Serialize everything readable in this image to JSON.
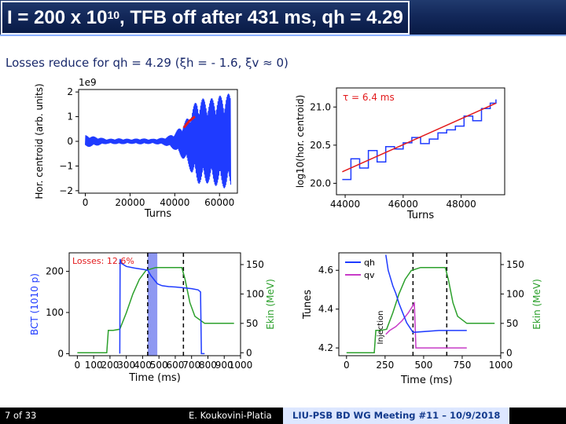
{
  "slide": {
    "title_prefix": "I = 200 x 10",
    "title_exp": "10",
    "title_suffix": ", TFB off after 431 ms, qh = 4.29",
    "subtitle": "Losses reduce for qh = 4.29 (ξh = - 1.6, ξv ≈ 0)",
    "footer": {
      "page": "7 of 33",
      "author": "E. Koukovini-Platia",
      "meeting": "LIU-PSB BD WG Meeting #11 – 10/9/2018"
    },
    "extra_xlabel": "Time (ms)"
  },
  "colors": {
    "blue": "#1f3bff",
    "red": "#e31a1c",
    "green": "#2ca02c",
    "magenta": "#c83cc8",
    "navy": "#10286a"
  },
  "chart_data": [
    {
      "id": "centroid_vs_turns",
      "type": "line",
      "xlabel": "Turns",
      "ylabel": "Hor. centroid (arb. units)",
      "offset_label": "1e9",
      "xlim": [
        -3000,
        68000
      ],
      "ylim": [
        -2.1,
        2.1
      ],
      "xticks": [
        0,
        20000,
        40000,
        60000
      ],
      "yticks": [
        -2,
        -1,
        0,
        1,
        2
      ],
      "envelope": {
        "x": [
          0,
          5000,
          10000,
          15000,
          20000,
          25000,
          30000,
          35000,
          38000,
          40000,
          42000,
          44000,
          46000,
          48000,
          50000,
          52000,
          55000,
          58000,
          62000,
          65000
        ],
        "amp": [
          0.25,
          0.18,
          0.1,
          0.12,
          0.1,
          0.12,
          0.1,
          0.15,
          0.25,
          0.35,
          0.55,
          0.75,
          1.0,
          1.4,
          1.7,
          1.75,
          1.7,
          1.8,
          1.9,
          1.95
        ]
      },
      "fit_highlight": {
        "x": [
          44000,
          49000
        ],
        "y": [
          0.55,
          1.0
        ]
      }
    },
    {
      "id": "log_centroid_fit",
      "type": "line",
      "xlabel": "Turns",
      "ylabel": "log10(hor. centroid)",
      "annotation": "τ = 6.4 ms",
      "xlim": [
        43700,
        49500
      ],
      "ylim": [
        19.85,
        21.25
      ],
      "xticks": [
        44000,
        46000,
        48000
      ],
      "yticks": [
        20.0,
        20.5,
        21.0
      ],
      "x": [
        43900,
        44200,
        44500,
        44800,
        45100,
        45400,
        45700,
        46000,
        46300,
        46600,
        46900,
        47200,
        47500,
        47800,
        48100,
        48400,
        48700,
        49000,
        49200
      ],
      "y": [
        20.05,
        20.32,
        20.2,
        20.43,
        20.28,
        20.48,
        20.45,
        20.53,
        20.6,
        20.52,
        20.58,
        20.66,
        20.7,
        20.75,
        20.88,
        20.82,
        20.98,
        21.05,
        21.1
      ],
      "fit": {
        "x": [
          43900,
          49200
        ],
        "y": [
          20.15,
          21.05
        ]
      }
    },
    {
      "id": "bct_ekin",
      "type": "line",
      "xlabel": "Time (ms)",
      "ylabel": "BCT (1010 p)",
      "y2label": "Ekin (MeV)",
      "annotation": "Losses: 12.6%",
      "xlim": [
        -50,
        1000
      ],
      "ylim": [
        -5,
        245
      ],
      "y2lim": [
        -5,
        170
      ],
      "xticks": [
        0,
        100,
        200,
        300,
        400,
        500,
        600,
        700,
        800,
        900,
        1000
      ],
      "yticks": [
        0,
        100,
        200
      ],
      "y2ticks": [
        0,
        50,
        100,
        150
      ],
      "vlines": [
        431,
        650
      ],
      "shaded": [
        431,
        490
      ],
      "series": [
        {
          "axis": "y",
          "x": [
            260,
            262,
            268,
            300,
            350,
            400,
            431,
            450,
            470,
            490,
            500,
            520,
            560,
            600,
            650,
            700,
            740,
            755,
            760,
            780
          ],
          "y": [
            0,
            230,
            220,
            212,
            208,
            205,
            203,
            190,
            180,
            170,
            168,
            165,
            163,
            162,
            160,
            158,
            155,
            150,
            0,
            0
          ]
        },
        {
          "axis": "y2",
          "x": [
            0,
            150,
            180,
            190,
            220,
            260,
            300,
            340,
            380,
            420,
            480,
            560,
            640,
            660,
            690,
            720,
            780,
            900,
            960
          ],
          "y": [
            0,
            0,
            0,
            38,
            38,
            40,
            68,
            100,
            125,
            140,
            145,
            145,
            145,
            125,
            85,
            62,
            50,
            50,
            50
          ]
        }
      ]
    },
    {
      "id": "tunes_ekin",
      "type": "line",
      "ylabel": "Tunes",
      "y2label": "Ekin (MeV)",
      "annotation": "Injection",
      "xlim": [
        -50,
        1000
      ],
      "ylim": [
        4.16,
        4.69
      ],
      "y2lim": [
        -5,
        170
      ],
      "xticks": [
        0,
        250,
        500,
        750,
        1000
      ],
      "yticks": [
        4.2,
        4.4,
        4.6
      ],
      "y2ticks": [
        0,
        50,
        100,
        150
      ],
      "vlines": [
        431,
        650
      ],
      "series": [
        {
          "name": "qh",
          "axis": "y",
          "x": [
            255,
            270,
            300,
            320,
            340,
            360,
            390,
            431,
            600,
            780
          ],
          "y": [
            4.68,
            4.6,
            4.52,
            4.48,
            4.43,
            4.39,
            4.33,
            4.28,
            4.29,
            4.29
          ]
        },
        {
          "name": "qv",
          "axis": "y",
          "x": [
            255,
            280,
            320,
            360,
            400,
            440,
            450,
            780
          ],
          "y": [
            4.27,
            4.29,
            4.31,
            4.34,
            4.38,
            4.43,
            4.2,
            4.2
          ]
        },
        {
          "axis": "y2",
          "x": [
            0,
            150,
            180,
            190,
            220,
            260,
            300,
            340,
            380,
            420,
            480,
            560,
            640,
            660,
            690,
            720,
            780,
            900,
            960
          ],
          "y": [
            0,
            0,
            0,
            38,
            38,
            40,
            68,
            100,
            125,
            140,
            145,
            145,
            145,
            125,
            85,
            62,
            50,
            50,
            50
          ]
        }
      ]
    }
  ]
}
